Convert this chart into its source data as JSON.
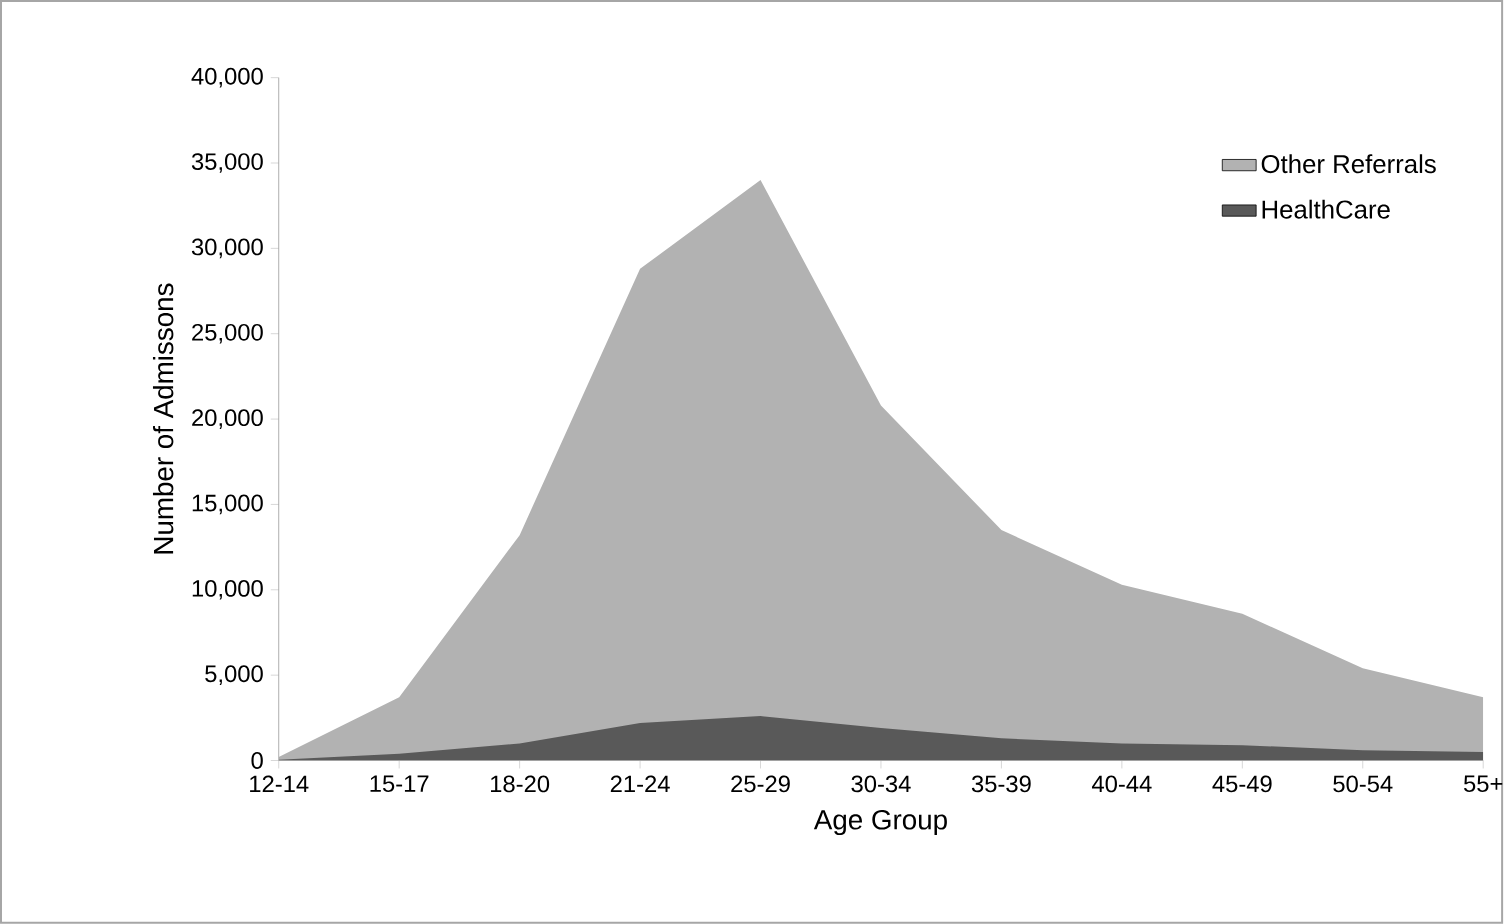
{
  "chart_data": {
    "type": "area",
    "xlabel": "Age Group",
    "ylabel": "Number of Admissons",
    "categories": [
      "12-14",
      "15-17",
      "18-20",
      "21-24",
      "25-29",
      "30-34",
      "35-39",
      "40-44",
      "45-49",
      "50-54",
      "55+"
    ],
    "series": [
      {
        "name": "Other Referrals",
        "color": "#b2b2b2",
        "values": [
          200,
          3700,
          13200,
          28800,
          34000,
          20800,
          13500,
          10300,
          8600,
          5400,
          3700
        ]
      },
      {
        "name": "HealthCare",
        "color": "#595959",
        "values": [
          50,
          400,
          1000,
          2200,
          2600,
          1900,
          1300,
          1000,
          900,
          600,
          500
        ]
      }
    ],
    "ylim": [
      0,
      40000
    ],
    "yticks": [
      {
        "value": 0,
        "label": "0"
      },
      {
        "value": 5000,
        "label": "5,000"
      },
      {
        "value": 10000,
        "label": "10,000"
      },
      {
        "value": 15000,
        "label": "15,000"
      },
      {
        "value": 20000,
        "label": "20,000"
      },
      {
        "value": 25000,
        "label": "25,000"
      },
      {
        "value": 30000,
        "label": "30,000"
      },
      {
        "value": 35000,
        "label": "35,000"
      },
      {
        "value": 40000,
        "label": "40,000"
      }
    ],
    "grid": false,
    "legend": "top right"
  }
}
